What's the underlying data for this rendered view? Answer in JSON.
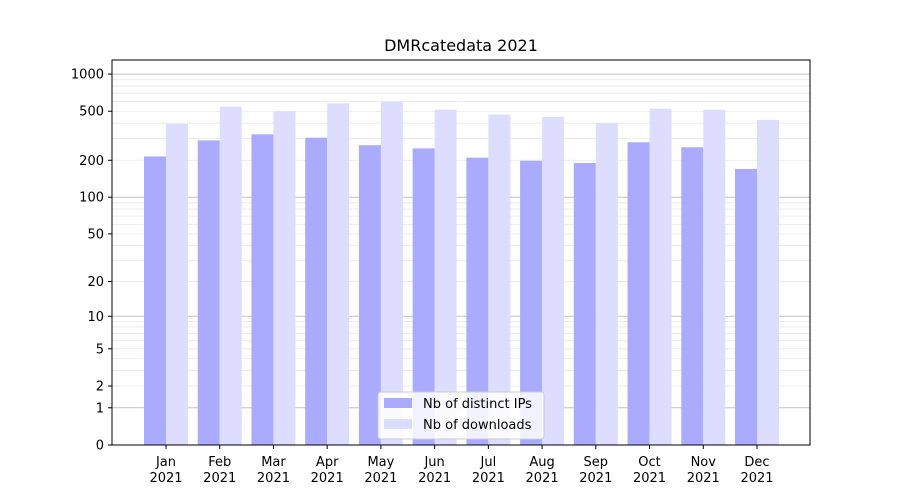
{
  "chart_data": {
    "type": "bar",
    "title": "DMRcatedata 2021",
    "xlabel": "",
    "ylabel": "",
    "y_scale": "log(1+y)",
    "ylim": [
      0,
      1300
    ],
    "y_ticks": [
      0,
      1,
      2,
      5,
      10,
      20,
      50,
      100,
      200,
      500,
      1000
    ],
    "categories": [
      {
        "month": "Jan",
        "year": "2021"
      },
      {
        "month": "Feb",
        "year": "2021"
      },
      {
        "month": "Mar",
        "year": "2021"
      },
      {
        "month": "Apr",
        "year": "2021"
      },
      {
        "month": "May",
        "year": "2021"
      },
      {
        "month": "Jun",
        "year": "2021"
      },
      {
        "month": "Jul",
        "year": "2021"
      },
      {
        "month": "Aug",
        "year": "2021"
      },
      {
        "month": "Sep",
        "year": "2021"
      },
      {
        "month": "Oct",
        "year": "2021"
      },
      {
        "month": "Nov",
        "year": "2021"
      },
      {
        "month": "Dec",
        "year": "2021"
      }
    ],
    "series": [
      {
        "name": "Nb of distinct IPs",
        "color": "#aaaaff",
        "values": [
          215,
          290,
          325,
          305,
          265,
          250,
          210,
          198,
          190,
          280,
          255,
          170
        ]
      },
      {
        "name": "Nb of downloads",
        "color": "#ddddff",
        "values": [
          395,
          545,
          500,
          580,
          600,
          515,
          470,
          450,
          400,
          525,
          515,
          425
        ]
      }
    ],
    "grid": "horizontal",
    "legend_position": "lower center"
  }
}
